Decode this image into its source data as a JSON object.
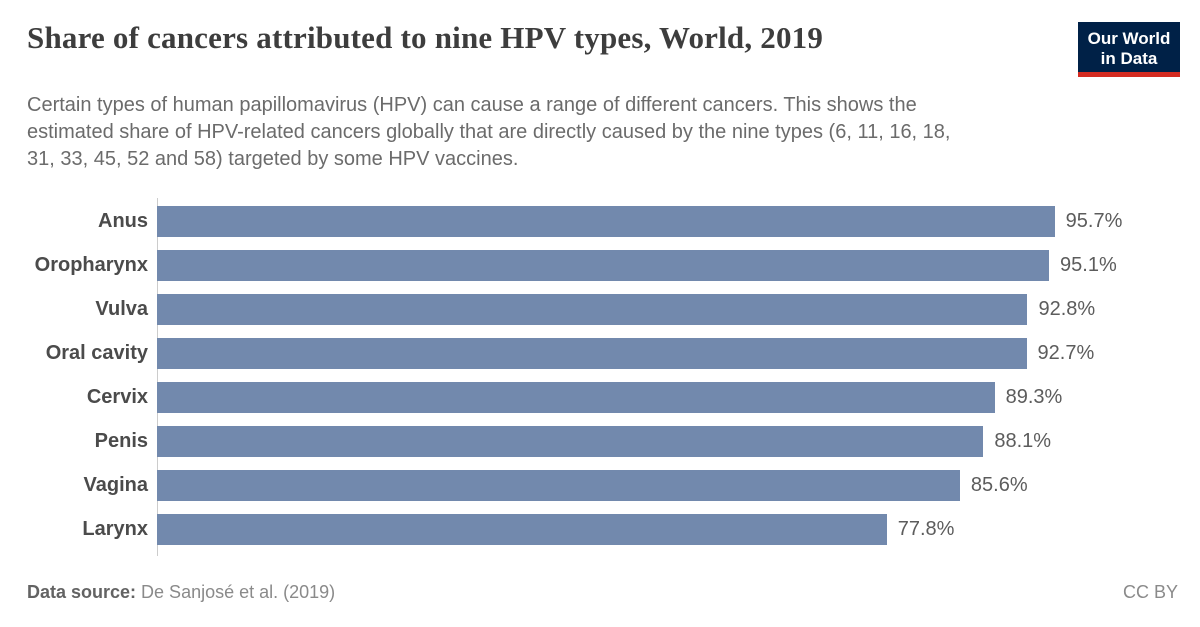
{
  "header": {
    "title": "Share of cancers attributed to nine HPV types, World, 2019",
    "subtitle_lines": [
      "Certain types of human papillomavirus (HPV) can cause a range of different cancers. This shows the",
      "estimated share of HPV-related cancers globally that are directly caused by the nine types (6, 11, 16, 18,",
      "31, 33, 45, 52 and 58) targeted by some HPV vaccines."
    ],
    "logo": {
      "line1": "Our World",
      "line2": "in Data",
      "bg_color": "#002147",
      "accent_color": "#d42b21"
    }
  },
  "chart_data": {
    "type": "bar",
    "orientation": "horizontal",
    "title": "Share of cancers attributed to nine HPV types, World, 2019",
    "categories": [
      "Anus",
      "Oropharynx",
      "Vulva",
      "Oral cavity",
      "Cervix",
      "Penis",
      "Vagina",
      "Larynx"
    ],
    "values": [
      95.7,
      95.1,
      92.8,
      92.7,
      89.3,
      88.1,
      85.6,
      77.8
    ],
    "value_labels": [
      "95.7%",
      "95.1%",
      "92.8%",
      "92.7%",
      "89.3%",
      "88.1%",
      "85.6%",
      "77.8%"
    ],
    "unit": "%",
    "xlim": [
      0,
      100
    ],
    "grid": false,
    "legend": "none",
    "bar_color": "#7289ad",
    "axis_line_color": "#cccccc"
  },
  "footer": {
    "source_label": "Data source:",
    "source_value": " De Sanjosé et al. (2019)",
    "license": "CC BY"
  }
}
